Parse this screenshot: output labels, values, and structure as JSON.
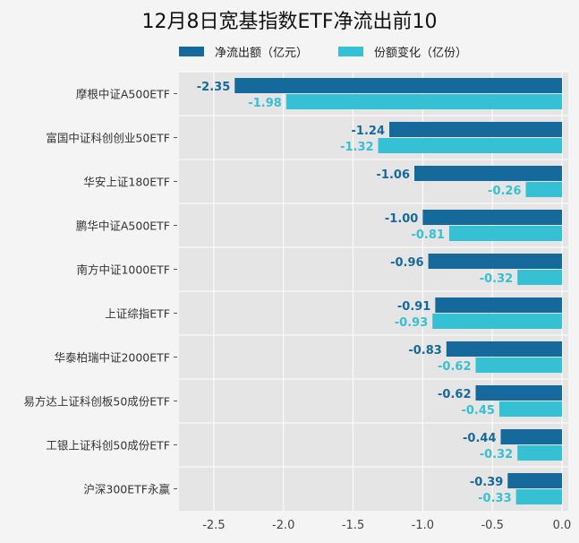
{
  "chart_data": {
    "type": "bar",
    "orientation": "horizontal",
    "title": "12月8日宽基指数ETF净流出前10",
    "categories": [
      "摩根中证A500ETF",
      "富国中证科创创业50ETF",
      "华安上证180ETF",
      "鹏华中证A500ETF",
      "南方中证1000ETF",
      "上证综指ETF",
      "华泰柏瑞中证2000ETF",
      "易方达上证科创板50成份ETF",
      "工银上证科创50成份ETF",
      "沪深300ETF永赢"
    ],
    "series": [
      {
        "name": "净流出额（亿元）",
        "color": "#16699b",
        "values": [
          -2.35,
          -1.24,
          -1.06,
          -1.0,
          -0.96,
          -0.91,
          -0.83,
          -0.62,
          -0.44,
          -0.39
        ],
        "labels": [
          "-2.35",
          "-1.24",
          "-1.06",
          "-1.00",
          "-0.96",
          "-0.91",
          "-0.83",
          "-0.62",
          "-0.44",
          "-0.39"
        ]
      },
      {
        "name": "份额变化（亿份）",
        "color": "#36c0d3",
        "values": [
          -1.98,
          -1.32,
          -0.26,
          -0.81,
          -0.32,
          -0.93,
          -0.62,
          -0.45,
          -0.32,
          -0.33
        ],
        "labels": [
          "-1.98",
          "-1.32",
          "-0.26",
          "-0.81",
          "-0.32",
          "-0.93",
          "-0.62",
          "-0.45",
          "-0.32",
          "-0.33"
        ]
      }
    ],
    "xlim": [
      -2.75,
      0
    ],
    "xticks": [
      -2.5,
      -2.0,
      -1.5,
      -1.0,
      -0.5,
      0.0
    ],
    "xtick_labels": [
      "-2.5",
      "-2.0",
      "-1.5",
      "-1.0",
      "-0.5",
      "0.0"
    ],
    "xlabel": "",
    "ylabel": "",
    "grid": true,
    "legend_position": "top"
  }
}
